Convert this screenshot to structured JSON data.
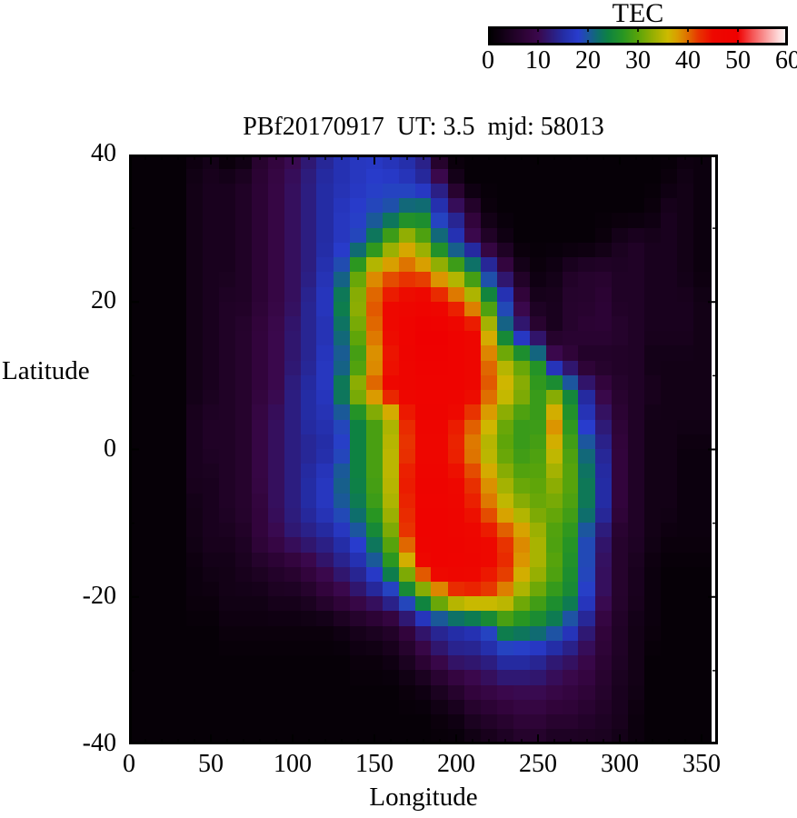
{
  "title": "PBf20170917  UT: 3.5  mjd: 58013",
  "colorbar": {
    "title": "TEC",
    "ticks": [
      0,
      10,
      20,
      30,
      40,
      50,
      60
    ],
    "min": 0,
    "max": 60
  },
  "axes": {
    "x": {
      "label": "Longitude",
      "ticks": [
        0,
        50,
        100,
        150,
        200,
        250,
        300,
        350
      ],
      "min": 0,
      "max": 360,
      "minor_step": 10,
      "major_step": 50
    },
    "y": {
      "label": "Latitude",
      "ticks": [
        40,
        20,
        0,
        -20,
        -40
      ],
      "min": -40,
      "max": 40,
      "minor_step": 10,
      "major_step": 20
    }
  },
  "colors": {
    "background": "#ffffff",
    "frame": "#000000",
    "text": "#000000"
  },
  "chart_data": {
    "type": "heatmap",
    "title": "PBf20170917  UT: 3.5  mjd: 58013",
    "xlabel": "Longitude",
    "ylabel": "Latitude",
    "value_label": "TEC",
    "value_range": [
      0,
      60
    ],
    "xlim": [
      0,
      360
    ],
    "ylim": [
      -40,
      40
    ],
    "lon_cell_deg": 10,
    "lat_row_deg": 2,
    "lons": [
      0,
      10,
      20,
      30,
      40,
      50,
      60,
      70,
      80,
      90,
      100,
      110,
      120,
      130,
      140,
      150,
      160,
      170,
      180,
      190,
      200,
      210,
      220,
      230,
      240,
      250,
      260,
      270,
      280,
      290,
      300,
      310,
      320,
      330,
      340,
      350
    ],
    "lats": [
      40,
      36,
      32,
      28,
      24,
      20,
      16,
      12,
      8,
      4,
      0,
      -4,
      -8,
      -12,
      -16,
      -20,
      -24,
      -28,
      -32,
      -36,
      -40
    ],
    "grid": [
      [
        1,
        1,
        1,
        1,
        2,
        3,
        1,
        2,
        6,
        8,
        10,
        12,
        14,
        16,
        17,
        17,
        16,
        15,
        13,
        4,
        1,
        1,
        1,
        1,
        1,
        1,
        1,
        1,
        1,
        1,
        1,
        1,
        1,
        1,
        2,
        2
      ],
      [
        1,
        1,
        1,
        1,
        3,
        4,
        4,
        5,
        7,
        9,
        11,
        13,
        15,
        16,
        17,
        18,
        18,
        17,
        15,
        12,
        4,
        1,
        1,
        1,
        1,
        1,
        1,
        1,
        1,
        1,
        1,
        1,
        1,
        2,
        3,
        2
      ],
      [
        1,
        1,
        1,
        1,
        3,
        4,
        4,
        5,
        7,
        9,
        11,
        13,
        15,
        17,
        18,
        19,
        20,
        23,
        24,
        17,
        13,
        7,
        2,
        1,
        1,
        1,
        1,
        1,
        1,
        1,
        1,
        1,
        2,
        4,
        3,
        2
      ],
      [
        1,
        1,
        1,
        1,
        3,
        4,
        4,
        5,
        7,
        9,
        11,
        13,
        15,
        17,
        19,
        24,
        31,
        36,
        31,
        23,
        17,
        11,
        6,
        3,
        1,
        1,
        1,
        1,
        1,
        2,
        4,
        5,
        4,
        4,
        3,
        2
      ],
      [
        1,
        1,
        1,
        1,
        3,
        4,
        4,
        5,
        7,
        9,
        11,
        13,
        16,
        20,
        30,
        38,
        40,
        41,
        40,
        36,
        32,
        26,
        17,
        10,
        4,
        2,
        3,
        5,
        6,
        6,
        5,
        5,
        4,
        4,
        3,
        2
      ],
      [
        1,
        1,
        1,
        1,
        3,
        4,
        5,
        5,
        7,
        9,
        11,
        14,
        17,
        24,
        33,
        41,
        45,
        46,
        47,
        45,
        42,
        37,
        27,
        18,
        9,
        4,
        4,
        6,
        6,
        7,
        5,
        5,
        4,
        4,
        4,
        3
      ],
      [
        1,
        1,
        1,
        1,
        3,
        4,
        5,
        6,
        8,
        10,
        12,
        14,
        16,
        22,
        31,
        40,
        45,
        48,
        50,
        50,
        48,
        46,
        36,
        22,
        13,
        7,
        4,
        6,
        7,
        7,
        6,
        5,
        4,
        4,
        4,
        3
      ],
      [
        1,
        1,
        1,
        1,
        3,
        4,
        5,
        6,
        8,
        10,
        12,
        14,
        17,
        20,
        28,
        38,
        44,
        47,
        49,
        49,
        48,
        46,
        40,
        34,
        30,
        26,
        12,
        8,
        5,
        5,
        5,
        5,
        3,
        3,
        3,
        3
      ],
      [
        1,
        1,
        1,
        1,
        3,
        4,
        5,
        6,
        8,
        10,
        13,
        15,
        17,
        24,
        34,
        41,
        46,
        47,
        48,
        48,
        48,
        46,
        41,
        37,
        33,
        28,
        30,
        24,
        14,
        9,
        6,
        5,
        4,
        3,
        3,
        3
      ],
      [
        1,
        1,
        1,
        1,
        4,
        5,
        5,
        6,
        9,
        11,
        13,
        15,
        16,
        19,
        24,
        29,
        34,
        43,
        47,
        47,
        44,
        41,
        37,
        31,
        28,
        28,
        39,
        27,
        17,
        12,
        7,
        5,
        3,
        3,
        3,
        3
      ],
      [
        1,
        1,
        1,
        1,
        4,
        5,
        5,
        6,
        9,
        11,
        13,
        14,
        15,
        18,
        24,
        29,
        35,
        42,
        46,
        46,
        43,
        39,
        34,
        30,
        28,
        29,
        36,
        29,
        21,
        14,
        8,
        5,
        3,
        3,
        2,
        2
      ],
      [
        1,
        1,
        1,
        1,
        4,
        4,
        5,
        6,
        9,
        11,
        13,
        15,
        17,
        21,
        24,
        29,
        35,
        44,
        47,
        47,
        45,
        42,
        38,
        33,
        30,
        30,
        33,
        30,
        23,
        15,
        8,
        5,
        3,
        3,
        2,
        2
      ],
      [
        1,
        1,
        1,
        1,
        3,
        4,
        5,
        6,
        8,
        11,
        13,
        15,
        17,
        20,
        23,
        28,
        34,
        43,
        48,
        48,
        47,
        44,
        40,
        36,
        33,
        31,
        31,
        29,
        23,
        15,
        8,
        5,
        3,
        3,
        2,
        2
      ],
      [
        1,
        1,
        1,
        1,
        3,
        4,
        4,
        5,
        8,
        10,
        12,
        13,
        14,
        16,
        19,
        24,
        31,
        42,
        48,
        48,
        47,
        46,
        45,
        42,
        39,
        34,
        29,
        27,
        19,
        12,
        6,
        5,
        3,
        2,
        2,
        2
      ],
      [
        1,
        1,
        1,
        1,
        2,
        3,
        3,
        4,
        5,
        6,
        7,
        9,
        11,
        13,
        15,
        19,
        26,
        35,
        45,
        48,
        48,
        47,
        45,
        43,
        38,
        34,
        30,
        26,
        19,
        11,
        6,
        4,
        2,
        1,
        1,
        1
      ],
      [
        1,
        1,
        1,
        1,
        2,
        2,
        3,
        3,
        3,
        4,
        4,
        5,
        7,
        9,
        11,
        13,
        16,
        22,
        28,
        36,
        41,
        42,
        41,
        38,
        33,
        30,
        27,
        25,
        18,
        11,
        6,
        4,
        2,
        1,
        1,
        1
      ],
      [
        1,
        1,
        1,
        1,
        1,
        1,
        2,
        2,
        2,
        2,
        2,
        2,
        2,
        3,
        4,
        5,
        6,
        9,
        13,
        15,
        16,
        17,
        20,
        26,
        25,
        24,
        22,
        18,
        13,
        8,
        5,
        3,
        2,
        1,
        1,
        1
      ],
      [
        1,
        1,
        1,
        1,
        1,
        1,
        1,
        1,
        1,
        1,
        1,
        1,
        1,
        1,
        2,
        2,
        3,
        5,
        8,
        11,
        13,
        13,
        14,
        16,
        16,
        15,
        13,
        12,
        10,
        7,
        5,
        3,
        1,
        1,
        1,
        1
      ],
      [
        1,
        1,
        1,
        1,
        1,
        1,
        1,
        1,
        1,
        1,
        1,
        1,
        1,
        1,
        1,
        1,
        1,
        2,
        3,
        5,
        7,
        9,
        10,
        11,
        11,
        11,
        10,
        9,
        8,
        6,
        4,
        3,
        1,
        1,
        1,
        1
      ],
      [
        1,
        1,
        1,
        1,
        1,
        1,
        1,
        1,
        1,
        1,
        1,
        1,
        1,
        1,
        1,
        1,
        1,
        1,
        1,
        2,
        3,
        5,
        6,
        7,
        8,
        8,
        7,
        7,
        6,
        5,
        4,
        2,
        1,
        1,
        1,
        1
      ],
      [
        1,
        1,
        1,
        1,
        1,
        1,
        1,
        1,
        1,
        1,
        1,
        1,
        1,
        1,
        1,
        1,
        1,
        1,
        1,
        1,
        1,
        2,
        3,
        4,
        5,
        5,
        4,
        4,
        4,
        4,
        3,
        2,
        1,
        1,
        1,
        1
      ]
    ],
    "colormap_stops": [
      [
        0,
        [
          0,
          0,
          0
        ]
      ],
      [
        2,
        [
          12,
          0,
          14
        ]
      ],
      [
        5,
        [
          32,
          2,
          38
        ]
      ],
      [
        8,
        [
          50,
          4,
          60
        ]
      ],
      [
        10,
        [
          58,
          8,
          76
        ]
      ],
      [
        12,
        [
          48,
          22,
          110
        ]
      ],
      [
        15,
        [
          36,
          44,
          164
        ]
      ],
      [
        18,
        [
          40,
          60,
          205
        ]
      ],
      [
        20,
        [
          28,
          86,
          158
        ]
      ],
      [
        22,
        [
          14,
          110,
          108
        ]
      ],
      [
        24,
        [
          14,
          130,
          66
        ]
      ],
      [
        27,
        [
          40,
          150,
          34
        ]
      ],
      [
        30,
        [
          90,
          164,
          10
        ]
      ],
      [
        33,
        [
          150,
          175,
          2
        ]
      ],
      [
        36,
        [
          205,
          186,
          0
        ]
      ],
      [
        38,
        [
          218,
          155,
          0
        ]
      ],
      [
        40,
        [
          223,
          110,
          0
        ]
      ],
      [
        42,
        [
          231,
          55,
          0
        ]
      ],
      [
        45,
        [
          238,
          8,
          0
        ]
      ],
      [
        50,
        [
          239,
          0,
          0
        ]
      ],
      [
        53,
        [
          245,
          85,
          85
        ]
      ],
      [
        56,
        [
          250,
          162,
          162
        ]
      ],
      [
        58,
        [
          253,
          212,
          212
        ]
      ],
      [
        60,
        [
          255,
          255,
          255
        ]
      ]
    ],
    "legend_position": "top",
    "grid_lines": false
  }
}
